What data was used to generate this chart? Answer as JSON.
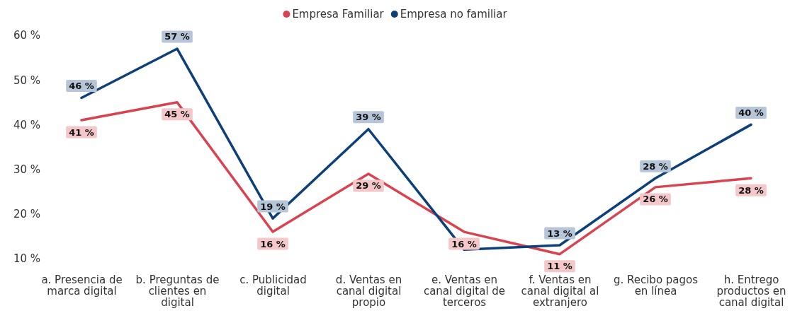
{
  "chart_data": {
    "type": "line",
    "categories": [
      "a. Presencia de marca digital",
      "b. Preguntas de clientes en digital",
      "c. Publicidad digital",
      "d. Ventas en canal digital propio",
      "e. Ventas en canal digital de terceros",
      "f. Ventas en canal digital al extranjero",
      "g. Recibo pagos en línea",
      "h. Entrego productos en canal digital"
    ],
    "series": [
      {
        "name": "Empresa Familiar",
        "color": "#d9434f",
        "values": [
          41,
          45,
          16,
          29,
          16,
          11,
          26,
          28
        ],
        "value_labels": [
          "41 %",
          "45 %",
          "16 %",
          "29 %",
          "16 %",
          "11 %",
          "26 %",
          "28 %"
        ]
      },
      {
        "name": "Empresa no familiar",
        "color": "#0d3f7a",
        "values": [
          46,
          57,
          19,
          39,
          12,
          13,
          28,
          40
        ],
        "value_labels": [
          "46 %",
          "57 %",
          "19 %",
          "39 %",
          null,
          "13 %",
          "28 %",
          "40 %"
        ]
      }
    ],
    "ylim": [
      10,
      60
    ],
    "yticks": [
      {
        "value": 10,
        "label": "10 %"
      },
      {
        "value": 20,
        "label": "20 %"
      },
      {
        "value": 30,
        "label": "30 %"
      },
      {
        "value": 40,
        "label": "40 %"
      },
      {
        "value": 50,
        "label": "50 %"
      },
      {
        "value": 60,
        "label": "60 %"
      }
    ],
    "legend": "top",
    "grid": false,
    "marker": "none",
    "line_style": "solid"
  }
}
